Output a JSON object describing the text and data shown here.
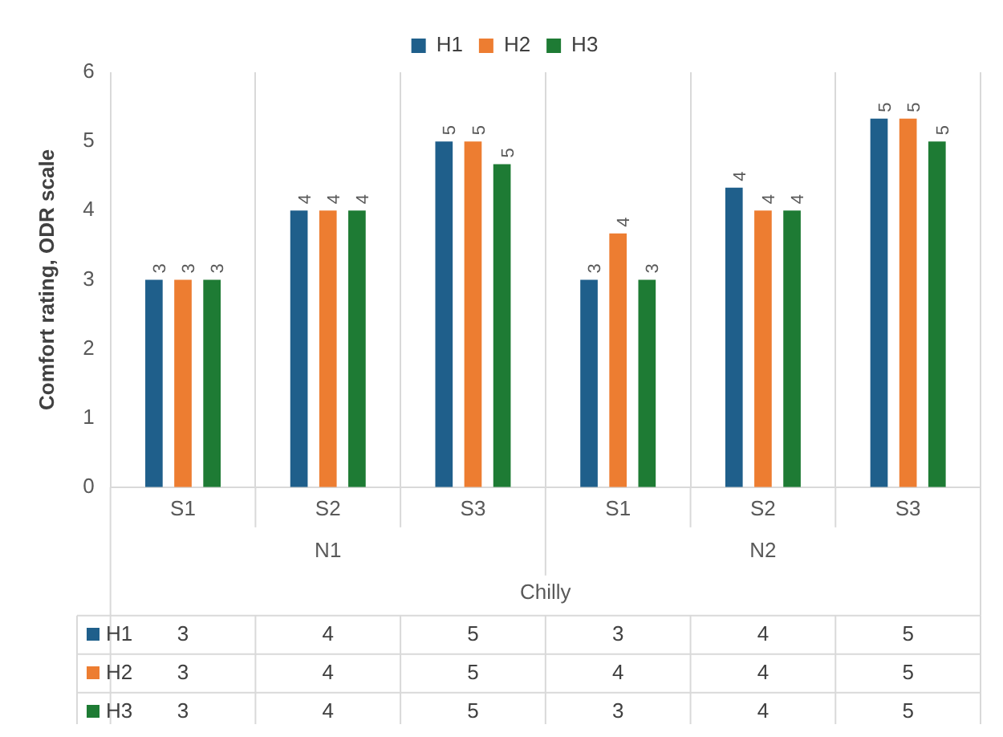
{
  "chart_data": {
    "type": "bar",
    "ylabel": "Comfort rating, ODR scale",
    "categories": [
      "S1",
      "S2",
      "S3",
      "S1",
      "S2",
      "S3"
    ],
    "series": [
      {
        "name": "H1",
        "color": "#1f5f8b",
        "values": [
          3,
          4,
          5,
          3,
          4.33,
          5.33
        ],
        "value_labels": [
          "3",
          "4",
          "5",
          "3",
          "4",
          "5"
        ]
      },
      {
        "name": "H2",
        "color": "#ed7d31",
        "values": [
          3,
          4,
          5,
          3.67,
          4,
          5.33
        ],
        "value_labels": [
          "3",
          "4",
          "5",
          "4",
          "4",
          "5"
        ]
      },
      {
        "name": "H3",
        "color": "#1e7b34",
        "values": [
          3,
          4,
          4.67,
          3,
          4,
          5
        ],
        "value_labels": [
          "3",
          "4",
          "5",
          "3",
          "4",
          "5"
        ]
      }
    ],
    "annotations": [
      "N1",
      "N2",
      "Chilly"
    ],
    "ylim": [
      0,
      6
    ],
    "yticks": [
      0,
      1,
      2,
      3,
      4,
      5,
      6
    ],
    "grid": "x",
    "legend": "top"
  }
}
